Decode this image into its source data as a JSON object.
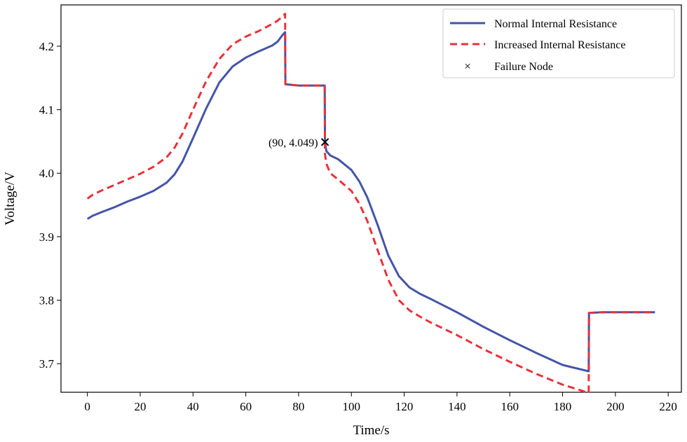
{
  "chart_data": {
    "type": "line",
    "title": "",
    "xlabel": "Time/s",
    "ylabel": "Voltage/V",
    "xlim": [
      -10,
      225
    ],
    "ylim": [
      3.655,
      4.265
    ],
    "xticks": [
      0,
      20,
      40,
      60,
      80,
      100,
      120,
      140,
      160,
      180,
      200,
      220
    ],
    "yticks": [
      3.7,
      3.8,
      3.9,
      4.0,
      4.1,
      4.2
    ],
    "ytick_labels": [
      "3.7",
      "3.8",
      "3.9",
      "4.0",
      "4.1",
      "4.2"
    ],
    "grid": false,
    "legend_position": "top-right",
    "series": [
      {
        "name": "Normal Internal Resistance",
        "color": "#4454a8",
        "style": "solid",
        "x": [
          0,
          2,
          5,
          10,
          15,
          20,
          25,
          30,
          33,
          36,
          40,
          45,
          50,
          55,
          60,
          65,
          70,
          72,
          74,
          74.9,
          75,
          80,
          85,
          89.9,
          90,
          90.5,
          92,
          95,
          100,
          103,
          106,
          110,
          114,
          118,
          122,
          126,
          130,
          140,
          150,
          160,
          170,
          180,
          189.9,
          190,
          195,
          200,
          205,
          210,
          215
        ],
        "y": [
          3.928,
          3.933,
          3.938,
          3.946,
          3.955,
          3.963,
          3.972,
          3.985,
          3.998,
          4.018,
          4.055,
          4.102,
          4.143,
          4.168,
          4.182,
          4.192,
          4.201,
          4.207,
          4.218,
          4.222,
          4.14,
          4.138,
          4.138,
          4.138,
          4.049,
          4.035,
          4.028,
          4.022,
          4.005,
          3.987,
          3.962,
          3.918,
          3.87,
          3.838,
          3.82,
          3.81,
          3.802,
          3.781,
          3.758,
          3.737,
          3.717,
          3.698,
          3.688,
          3.78,
          3.781,
          3.781,
          3.781,
          3.781,
          3.781
        ]
      },
      {
        "name": "Increased Internal Resistance",
        "color": "#e8323a",
        "style": "dashed",
        "x": [
          0,
          2,
          5,
          10,
          15,
          20,
          25,
          30,
          33,
          36,
          40,
          45,
          50,
          55,
          60,
          65,
          70,
          72,
          74,
          74.9,
          75,
          80,
          85,
          89.9,
          90,
          90.5,
          92,
          95,
          100,
          103,
          106,
          110,
          114,
          118,
          122,
          126,
          130,
          140,
          150,
          160,
          170,
          180,
          189.9,
          190,
          195,
          200,
          205,
          210,
          215
        ],
        "y": [
          3.96,
          3.966,
          3.972,
          3.981,
          3.99,
          3.999,
          4.01,
          4.025,
          4.04,
          4.062,
          4.1,
          4.145,
          4.18,
          4.203,
          4.215,
          4.224,
          4.235,
          4.24,
          4.247,
          4.251,
          4.14,
          4.138,
          4.138,
          4.138,
          4.03,
          4.015,
          4.0,
          3.99,
          3.972,
          3.952,
          3.925,
          3.878,
          3.832,
          3.8,
          3.784,
          3.774,
          3.765,
          3.745,
          3.723,
          3.703,
          3.684,
          3.667,
          3.654,
          3.78,
          3.781,
          3.781,
          3.781,
          3.781,
          3.781
        ]
      }
    ],
    "markers": [
      {
        "name": "Failure Node",
        "symbol": "x",
        "x": 90,
        "y": 4.049,
        "label": "(90, 4.049)"
      }
    ]
  }
}
